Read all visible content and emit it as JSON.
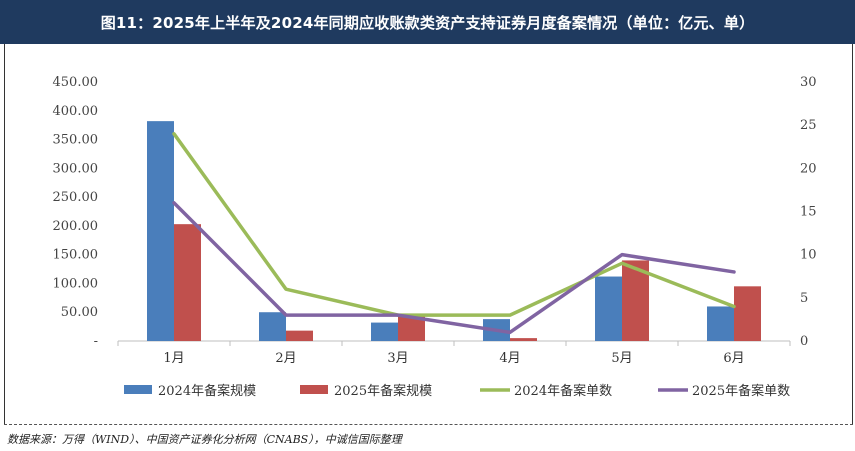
{
  "header": {
    "title": "图11：2025年上半年及2024年同期应收账款类资产支持证券月度备案情况（单位：亿元、单）"
  },
  "source": {
    "text": "数据来源：万得（WIND）、中国资产证券化分析网（CNABS），中诚信国际整理"
  },
  "chart_data": {
    "type": "bar",
    "categories": [
      "1月",
      "2月",
      "3月",
      "4月",
      "5月",
      "6月"
    ],
    "left_axis": {
      "ylim": [
        0,
        450
      ],
      "ticks": [
        "-",
        "50.00",
        "100.00",
        "150.00",
        "200.00",
        "250.00",
        "300.00",
        "350.00",
        "400.00",
        "450.00"
      ]
    },
    "right_axis": {
      "ylim": [
        0,
        30
      ],
      "ticks": [
        "0",
        "5",
        "10",
        "15",
        "20",
        "25",
        "30"
      ]
    },
    "series": [
      {
        "name": "2024年备案规模",
        "kind": "bar",
        "axis": "left",
        "color": "#4a7ebb",
        "values": [
          382,
          50,
          32,
          38,
          112,
          60
        ]
      },
      {
        "name": "2025年备案规模",
        "kind": "bar",
        "axis": "left",
        "color": "#c0504d",
        "values": [
          203,
          18,
          45,
          5,
          140,
          95
        ]
      },
      {
        "name": "2024年备案单数",
        "kind": "line",
        "axis": "right",
        "color": "#9bbb59",
        "values": [
          24,
          6,
          3,
          3,
          9,
          4
        ]
      },
      {
        "name": "2025年备案单数",
        "kind": "line",
        "axis": "right",
        "color": "#8064a2",
        "values": [
          16,
          3,
          3,
          1,
          10,
          8
        ]
      }
    ],
    "legend_position": "bottom",
    "grid": false
  }
}
